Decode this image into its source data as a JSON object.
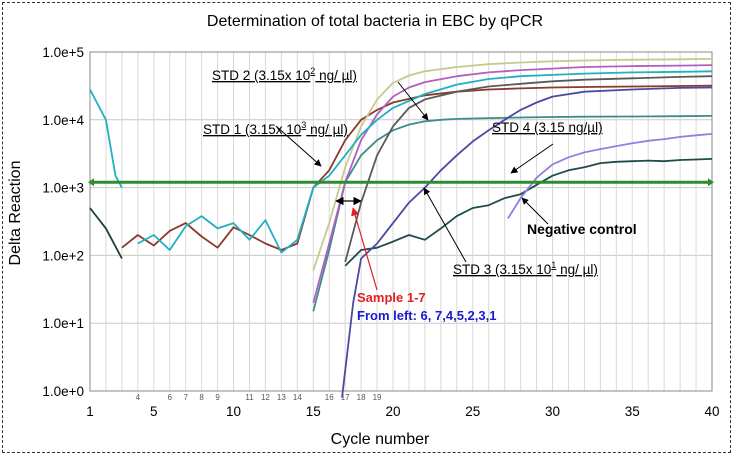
{
  "chart_data": {
    "type": "line",
    "title": "Determination of total bacteria in EBC by qPCR",
    "xlabel": "Cycle number",
    "ylabel": "Delta Reaction",
    "y_scale": "log",
    "xlim": [
      1,
      40
    ],
    "ylim": [
      1,
      100000
    ],
    "x_ticks": [
      "1",
      "5",
      "10",
      "15",
      "20",
      "25",
      "30",
      "35",
      "40"
    ],
    "x_tick_values": [
      1,
      5,
      10,
      15,
      20,
      25,
      30,
      35,
      40
    ],
    "minor_x_ticks": [
      "4",
      "6",
      "7",
      "8",
      "9",
      "11",
      "12",
      "13",
      "14",
      "16",
      "17",
      "18",
      "19"
    ],
    "y_ticks": [
      "1.0e+0",
      "1.0e+1",
      "1.0e+2",
      "1.0e+3",
      "1.0e+4",
      "1.0e+5"
    ],
    "y_tick_values": [
      1,
      10,
      100,
      1000,
      10000,
      100000
    ],
    "grid": true,
    "threshold": 1200,
    "threshold_color": "#2e8b2e",
    "series": [
      {
        "label_ref": "std2",
        "color": "#8b3a2a",
        "x": [
          3,
          4,
          5,
          6,
          7,
          8,
          9,
          10,
          11,
          12,
          13,
          14,
          15,
          16,
          17,
          18,
          19,
          20,
          22,
          24,
          26,
          28,
          30,
          32,
          35,
          38,
          40
        ],
        "y": [
          130,
          200,
          140,
          230,
          300,
          190,
          130,
          260,
          200,
          150,
          120,
          150,
          1000,
          1800,
          5000,
          10000,
          14000,
          18000,
          23000,
          26000,
          28000,
          29000,
          30000,
          30500,
          31000,
          31500,
          32000
        ]
      },
      {
        "label_ref": "std1",
        "color": "#3c8c8c",
        "x": [
          15,
          16,
          17,
          18,
          19,
          20,
          21,
          22,
          23,
          24,
          26,
          28,
          30,
          32,
          35,
          38,
          40
        ],
        "y": [
          15,
          120,
          1200,
          3000,
          5000,
          7000,
          8500,
          9500,
          10000,
          10300,
          10600,
          10800,
          11000,
          11100,
          11200,
          11300,
          11400
        ]
      },
      {
        "label_ref": "std3",
        "color": "#1e4b4b",
        "x": [
          17,
          18,
          19,
          20,
          21,
          22,
          23,
          24,
          25,
          26,
          27,
          28,
          29,
          30,
          31,
          32,
          33,
          34,
          35,
          36,
          37,
          38,
          39,
          40
        ],
        "y": [
          70,
          120,
          130,
          160,
          200,
          170,
          250,
          380,
          500,
          550,
          700,
          800,
          1100,
          1500,
          1800,
          2000,
          2300,
          2400,
          2450,
          2500,
          2450,
          2550,
          2600,
          2650
        ]
      },
      {
        "label_ref": "std4",
        "color": "#9080e0",
        "x": [
          27.2,
          28,
          29,
          30,
          31,
          32,
          33,
          34,
          35,
          36,
          37,
          38,
          39,
          40
        ],
        "y": [
          350,
          700,
          1400,
          2200,
          2800,
          3300,
          3700,
          4100,
          4500,
          4900,
          5200,
          5600,
          5900,
          6200
        ]
      },
      {
        "color": "#4a4aa0",
        "x": [
          16.8,
          17.5,
          18,
          19,
          20,
          21,
          22,
          23,
          24,
          25,
          26,
          27,
          28,
          29,
          30,
          32,
          35,
          38,
          40
        ],
        "y": [
          0.8,
          20,
          90,
          150,
          300,
          600,
          1000,
          1800,
          3000,
          4800,
          7000,
          10000,
          14000,
          18000,
          22000,
          26000,
          28000,
          29500,
          30000
        ]
      },
      {
        "color": "#5a5a5a",
        "x": [
          17,
          18,
          19,
          20,
          21,
          22,
          24,
          26,
          28,
          30,
          32,
          35,
          38,
          40
        ],
        "y": [
          80,
          600,
          3000,
          8000,
          15000,
          20000,
          26000,
          31000,
          34000,
          37000,
          39000,
          41000,
          43000,
          44000
        ]
      },
      {
        "color": "#c8c890",
        "x": [
          15,
          16,
          17,
          18,
          19,
          20,
          21,
          22,
          24,
          26,
          28,
          30,
          32,
          35,
          38,
          40
        ],
        "y": [
          60,
          300,
          2000,
          8000,
          20000,
          35000,
          45000,
          52000,
          60000,
          66000,
          70000,
          73000,
          75000,
          77000,
          78000,
          79000
        ]
      },
      {
        "color": "#b060c0",
        "x": [
          15,
          16,
          17,
          18,
          19,
          20,
          21,
          22,
          24,
          26,
          28,
          30,
          32,
          35,
          38,
          40
        ],
        "y": [
          20,
          150,
          1200,
          5000,
          12000,
          22000,
          30000,
          36000,
          44000,
          50000,
          54000,
          57000,
          60000,
          62000,
          63000,
          64000
        ]
      },
      {
        "color": "#20b0c0",
        "x": [
          1,
          2,
          2.6,
          3
        ],
        "y": [
          28000,
          10000,
          1500,
          1000
        ]
      },
      {
        "color": "#1e4030",
        "x": [
          1,
          2,
          3
        ],
        "y": [
          500,
          250,
          90
        ]
      },
      {
        "color": "#20b0c0",
        "x": [
          4,
          5,
          6,
          7,
          8,
          9,
          10,
          11,
          12,
          13,
          14,
          15,
          16,
          17,
          18,
          19,
          20,
          22,
          24,
          26,
          28,
          30,
          32,
          35,
          38,
          40
        ],
        "y": [
          150,
          200,
          120,
          270,
          380,
          250,
          300,
          170,
          330,
          110,
          170,
          1000,
          1500,
          3000,
          6000,
          10000,
          15000,
          24000,
          33000,
          40000,
          44000,
          46000,
          48000,
          50000,
          51000,
          52000
        ]
      }
    ],
    "annotations": [
      {
        "id": "std2",
        "prefix": "STD 2 (3.15x 10",
        "sup": "2",
        "suffix": "  ng/ µl)",
        "color": "#000000"
      },
      {
        "id": "std1",
        "prefix": "STD 1 (3.15x 10",
        "sup": "3",
        "suffix": "  ng/ µl)",
        "color": "#000000"
      },
      {
        "id": "std4",
        "prefix": "STD 4 (3.15 ng/µl)",
        "sup": "",
        "suffix": "",
        "color": "#000000"
      },
      {
        "id": "neg",
        "prefix": "Negative control",
        "sup": "",
        "suffix": "",
        "color": "#000000"
      },
      {
        "id": "std3",
        "prefix": "STD 3 (3.15x 10",
        "sup": "1",
        "suffix": " ng/ µl)",
        "color": "#000000"
      },
      {
        "id": "sample",
        "prefix": "Sample 1-7",
        "sup": "",
        "suffix": "",
        "color": "#e02020"
      },
      {
        "id": "order",
        "prefix": "From left: 6, 7,4,5,2,3,1",
        "sup": "",
        "suffix": "",
        "color": "#1a1ad0"
      }
    ]
  }
}
